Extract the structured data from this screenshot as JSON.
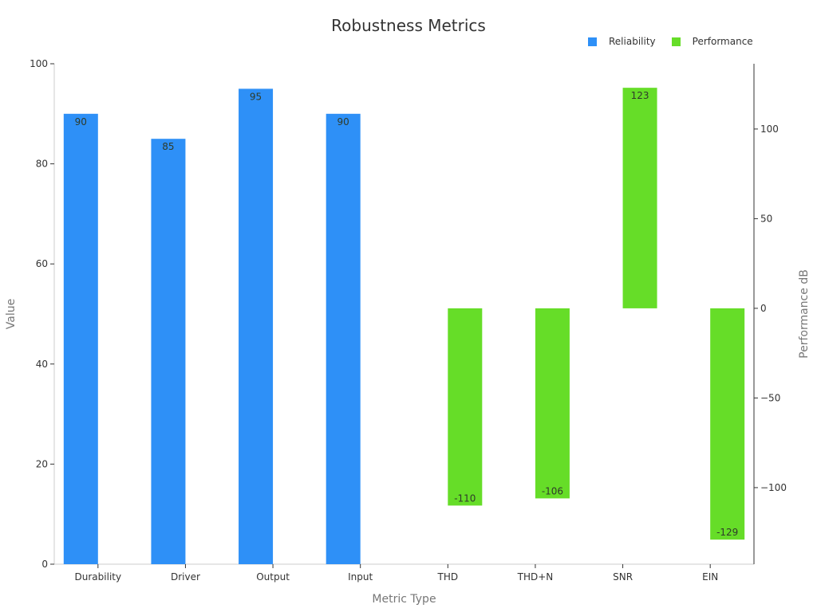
{
  "chart_data": {
    "type": "bar",
    "title": "Robustness Metrics",
    "xlabel": "Metric Type",
    "ylabel": "Value",
    "y2label": "Performance dB",
    "categories": [
      "Durability",
      "Driver",
      "Output",
      "Input",
      "THD",
      "THD+N",
      "SNR",
      "EIN"
    ],
    "series": [
      {
        "name": "Reliability",
        "axis": "left",
        "color": "#2e90f7",
        "values": [
          90,
          85,
          95,
          90,
          null,
          null,
          null,
          null
        ]
      },
      {
        "name": "Performance",
        "axis": "right",
        "color": "#66dd28",
        "values": [
          null,
          null,
          null,
          null,
          -110,
          -106,
          123,
          -129
        ]
      }
    ],
    "ylim": [
      0,
      100
    ],
    "yticks": [
      0,
      20,
      40,
      60,
      80,
      100
    ],
    "y2lim": [
      -142.7,
      136.4
    ],
    "y2ticks": [
      -100,
      -50,
      0,
      50,
      100
    ],
    "y2tick_labels": [
      "−100",
      "−50",
      "0",
      "50",
      "100"
    ],
    "grid": false,
    "legend_position": "top-right"
  },
  "legend": {
    "items": [
      {
        "label": "Reliability",
        "color": "#2e90f7"
      },
      {
        "label": "Performance",
        "color": "#66dd28"
      }
    ]
  }
}
